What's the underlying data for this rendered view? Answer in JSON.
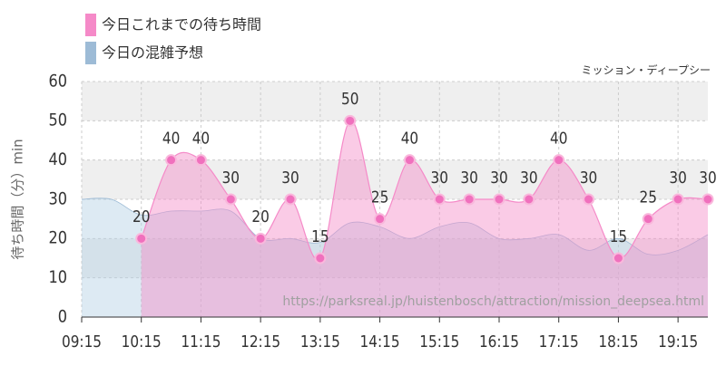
{
  "chart_data": {
    "type": "area",
    "subtitle": "ミッション・ディープシー",
    "y_label": "待ち時間（分）min",
    "annotation": "https://parksreal.jp/huistenbosch/attraction/mission_deepsea.html",
    "x": [
      "09:15",
      "09:45",
      "10:15",
      "10:45",
      "11:15",
      "11:45",
      "12:15",
      "12:45",
      "13:15",
      "13:45",
      "14:15",
      "14:45",
      "15:15",
      "15:45",
      "16:15",
      "16:45",
      "17:15",
      "17:45",
      "18:15",
      "18:45",
      "19:15",
      "19:45"
    ],
    "xlim": [
      "09:15",
      "19:45"
    ],
    "xticks": [
      "09:15",
      "10:15",
      "11:15",
      "12:15",
      "13:15",
      "14:15",
      "15:15",
      "16:15",
      "17:15",
      "18:15",
      "19:15"
    ],
    "ylim": [
      0,
      60
    ],
    "yticks": [
      0,
      10,
      20,
      30,
      40,
      50,
      60
    ],
    "grid": true,
    "series": [
      {
        "name": "今日の混雑予想",
        "color": "#9dbbd6",
        "values": [
          30,
          30,
          26,
          27,
          27,
          27,
          20,
          20,
          19,
          24,
          23,
          20,
          23,
          24,
          20,
          20,
          21,
          17,
          20,
          16,
          17,
          21
        ]
      },
      {
        "name": "今日これまでの待ち時間",
        "color": "#f58ac8",
        "values": [
          null,
          null,
          20,
          40,
          40,
          30,
          20,
          30,
          15,
          50,
          25,
          40,
          30,
          30,
          30,
          30,
          40,
          30,
          15,
          25,
          30,
          30
        ]
      }
    ]
  }
}
